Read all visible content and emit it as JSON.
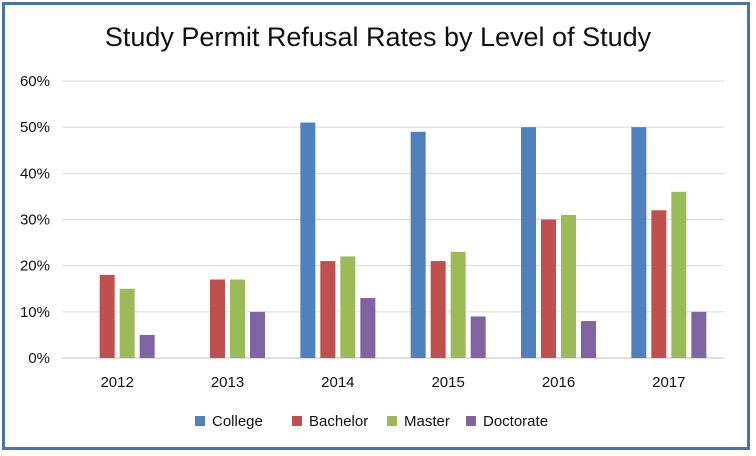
{
  "chart_data": {
    "type": "bar",
    "title": "Study Permit Refusal Rates by Level of Study",
    "xlabel": "",
    "ylabel": "",
    "categories": [
      "2012",
      "2013",
      "2014",
      "2015",
      "2016",
      "2017"
    ],
    "y_ticks": [
      "0%",
      "10%",
      "20%",
      "30%",
      "40%",
      "50%",
      "60%"
    ],
    "ylim": [
      0,
      60
    ],
    "grid": true,
    "legend_position": "bottom",
    "series": [
      {
        "name": "College",
        "color": "#4f81bd",
        "values": [
          null,
          null,
          51,
          49,
          50,
          50
        ]
      },
      {
        "name": "Bachelor",
        "color": "#c0504d",
        "values": [
          18,
          17,
          21,
          21,
          30,
          32
        ]
      },
      {
        "name": "Master",
        "color": "#9bbb59",
        "values": [
          15,
          17,
          22,
          23,
          31,
          36
        ]
      },
      {
        "name": "Doctorate",
        "color": "#8064a2",
        "values": [
          5,
          10,
          13,
          9,
          8,
          10
        ]
      }
    ]
  }
}
